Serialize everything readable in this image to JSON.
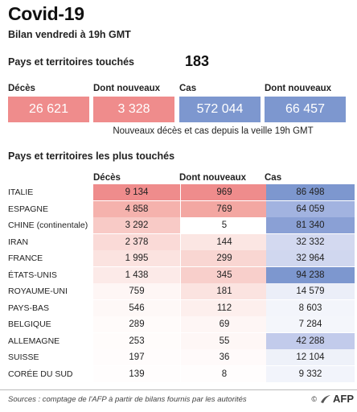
{
  "header": {
    "title": "Covid-19",
    "subtitle": "Bilan vendredi à 19h GMT"
  },
  "countries": {
    "label": "Pays et territoires touchés",
    "value": "183"
  },
  "summary": {
    "headers": [
      "Décès",
      "Dont nouveaux",
      "Cas",
      "Dont nouveaux"
    ],
    "values": [
      "26 621",
      "3 328",
      "572 044",
      "66 457"
    ],
    "colors": [
      "#ef8c8c",
      "#ef8c8c",
      "#7d97cf",
      "#7d97cf"
    ],
    "note": "Nouveaux décès et cas depuis la veille 19h GMT"
  },
  "table": {
    "section_title": "Pays et territoires les plus touchés",
    "columns": [
      "Décès",
      "Dont nouveaux",
      "Cas"
    ],
    "rows": [
      {
        "country": "ITALIE",
        "deaths": "9 134",
        "new_deaths": "969",
        "cases": "86 498",
        "deaths_bg": "#ef8c8c",
        "new_bg": "#ef8c8c",
        "cases_bg": "#7d97cf"
      },
      {
        "country": "ESPAGNE",
        "deaths": "4 858",
        "new_deaths": "769",
        "cases": "64 059",
        "deaths_bg": "#f5b2ad",
        "new_bg": "#f3a7a2",
        "cases_bg": "#a2b3e0"
      },
      {
        "country": "CHINE (continentale)",
        "deaths": "3 292",
        "new_deaths": "5",
        "cases": "81 340",
        "deaths_bg": "#f8cac6",
        "new_bg": "#ffffff",
        "cases_bg": "#8aa0d5"
      },
      {
        "country": "IRAN",
        "deaths": "2 378",
        "new_deaths": "144",
        "cases": "32 332",
        "deaths_bg": "#fadad7",
        "new_bg": "#fbe6e3",
        "cases_bg": "#d3d9f0"
      },
      {
        "country": "FRANCE",
        "deaths": "1 995",
        "new_deaths": "299",
        "cases": "32 964",
        "deaths_bg": "#fbe3e0",
        "new_bg": "#f9d6d2",
        "cases_bg": "#d0d7ef"
      },
      {
        "country": "ÉTATS-UNIS",
        "deaths": "1 438",
        "new_deaths": "345",
        "cases": "94 238",
        "deaths_bg": "#fceae8",
        "new_bg": "#f8cfcb",
        "cases_bg": "#7d97cf"
      },
      {
        "country": "ROYAUME-UNI",
        "deaths": "759",
        "new_deaths": "181",
        "cases": "14 579",
        "deaths_bg": "#fef6f5",
        "new_bg": "#fbe3e0",
        "cases_bg": "#ebeef8"
      },
      {
        "country": "PAYS-BAS",
        "deaths": "546",
        "new_deaths": "112",
        "cases": "8 603",
        "deaths_bg": "#fef8f7",
        "new_bg": "#fdefed",
        "cases_bg": "#f3f5fb"
      },
      {
        "country": "BELGIQUE",
        "deaths": "289",
        "new_deaths": "69",
        "cases": "7 284",
        "deaths_bg": "#fffbfa",
        "new_bg": "#fef6f5",
        "cases_bg": "#f4f6fb"
      },
      {
        "country": "ALLEMAGNE",
        "deaths": "253",
        "new_deaths": "55",
        "cases": "42 288",
        "deaths_bg": "#fffcfb",
        "new_bg": "#fef7f6",
        "cases_bg": "#c2cbeb"
      },
      {
        "country": "SUISSE",
        "deaths": "197",
        "new_deaths": "36",
        "cases": "12 104",
        "deaths_bg": "#fffcfc",
        "new_bg": "#fffafa",
        "cases_bg": "#eef1f9"
      },
      {
        "country": "CORÉE DU SUD",
        "deaths": "139",
        "new_deaths": "8",
        "cases": "9 332",
        "deaths_bg": "#fffdfd",
        "new_bg": "#fffdfd",
        "cases_bg": "#f2f4fb"
      }
    ]
  },
  "footer": {
    "source": "Sources : comptage de l'AFP à partir de bilans fournis par les autorités",
    "copyright": "©",
    "brand": "AFP"
  }
}
